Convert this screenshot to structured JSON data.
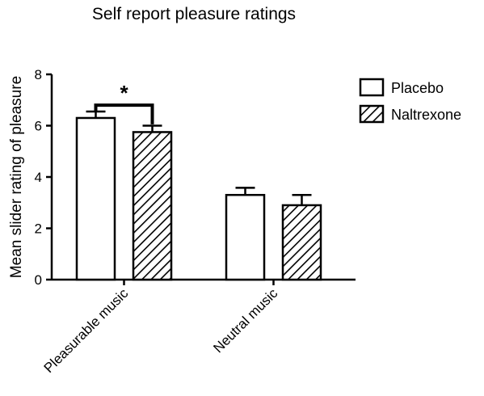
{
  "chart_data": {
    "type": "bar",
    "title": "Self report pleasure ratings",
    "xlabel": "",
    "ylabel": "Mean slider rating of pleasure",
    "ylim": [
      0,
      8
    ],
    "yticks": [
      "0",
      "2",
      "4",
      "6",
      "8"
    ],
    "categories": [
      "Pleasurable music",
      "Neutral music"
    ],
    "series": [
      {
        "name": "Placebo",
        "values": [
          6.3,
          3.3
        ],
        "errors": [
          0.25,
          0.28
        ],
        "pattern": "solid-white"
      },
      {
        "name": "Naltrexone",
        "values": [
          5.75,
          2.9
        ],
        "errors": [
          0.25,
          0.4
        ],
        "pattern": "diagonal-hatch"
      }
    ],
    "annotations": [
      {
        "text": "*",
        "between": [
          "Placebo",
          "Naltrexone"
        ],
        "category": "Pleasurable music"
      }
    ],
    "legend_position": "top-right",
    "grid": false
  },
  "colors": {
    "ink": "#000000",
    "bar_fill": "#ffffff",
    "background": "#ffffff"
  }
}
